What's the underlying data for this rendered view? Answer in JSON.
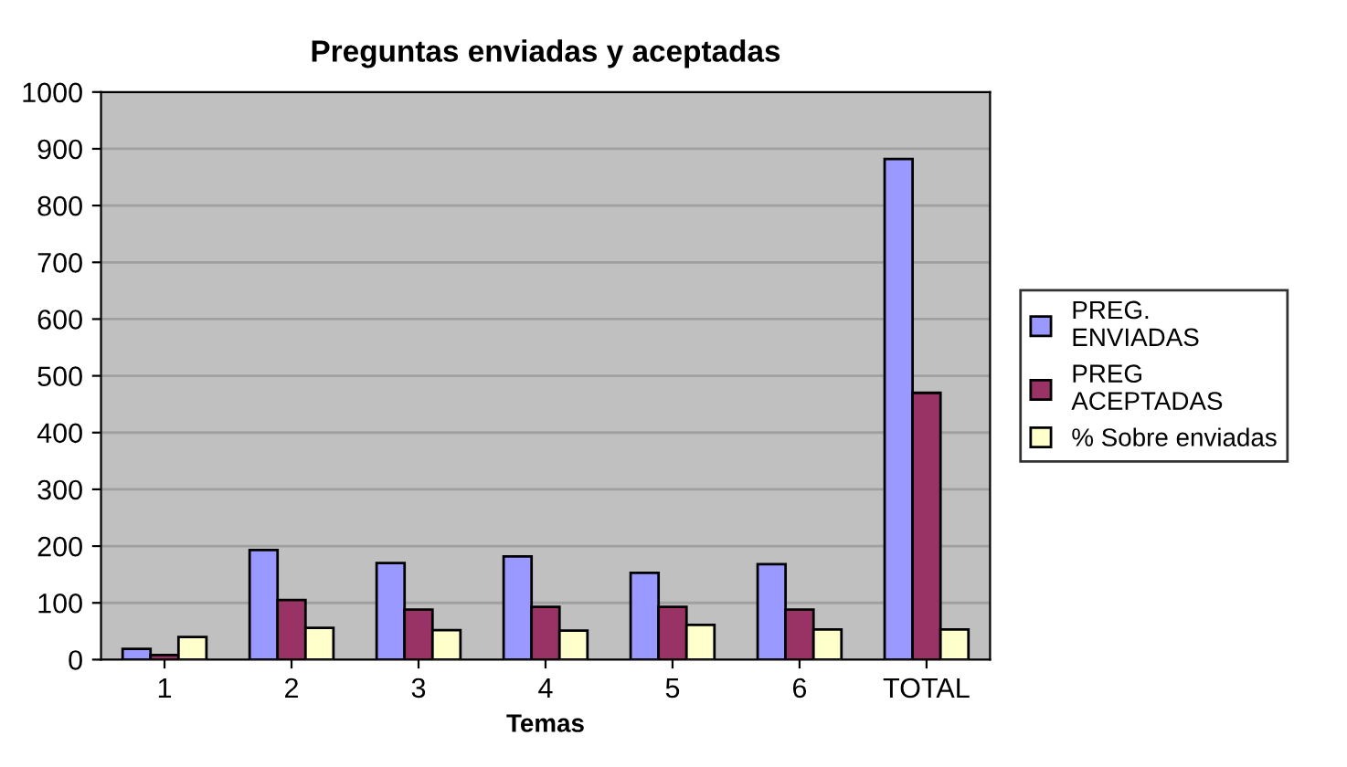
{
  "chart_data": {
    "type": "bar",
    "title": "Preguntas enviadas y aceptadas",
    "xlabel": "Temas",
    "categories": [
      "1",
      "2",
      "3",
      "4",
      "5",
      "6",
      "TOTAL"
    ],
    "series": [
      {
        "name": "PREG.\nENVIADAS",
        "color": "#9999ff",
        "values": [
          19,
          193,
          170,
          182,
          153,
          168,
          882
        ]
      },
      {
        "name": "PREG\nACEPTADAS",
        "color": "#993366",
        "values": [
          8,
          105,
          88,
          93,
          93,
          88,
          470
        ]
      },
      {
        "name": "% Sobre enviadas",
        "color": "#ffffcc",
        "values": [
          40,
          56,
          52,
          51,
          61,
          53,
          53
        ]
      }
    ],
    "ylim": [
      0,
      1000
    ],
    "yticks": [
      0,
      100,
      200,
      300,
      400,
      500,
      600,
      700,
      800,
      900,
      1000
    ],
    "grid": "y",
    "legend": "right"
  }
}
